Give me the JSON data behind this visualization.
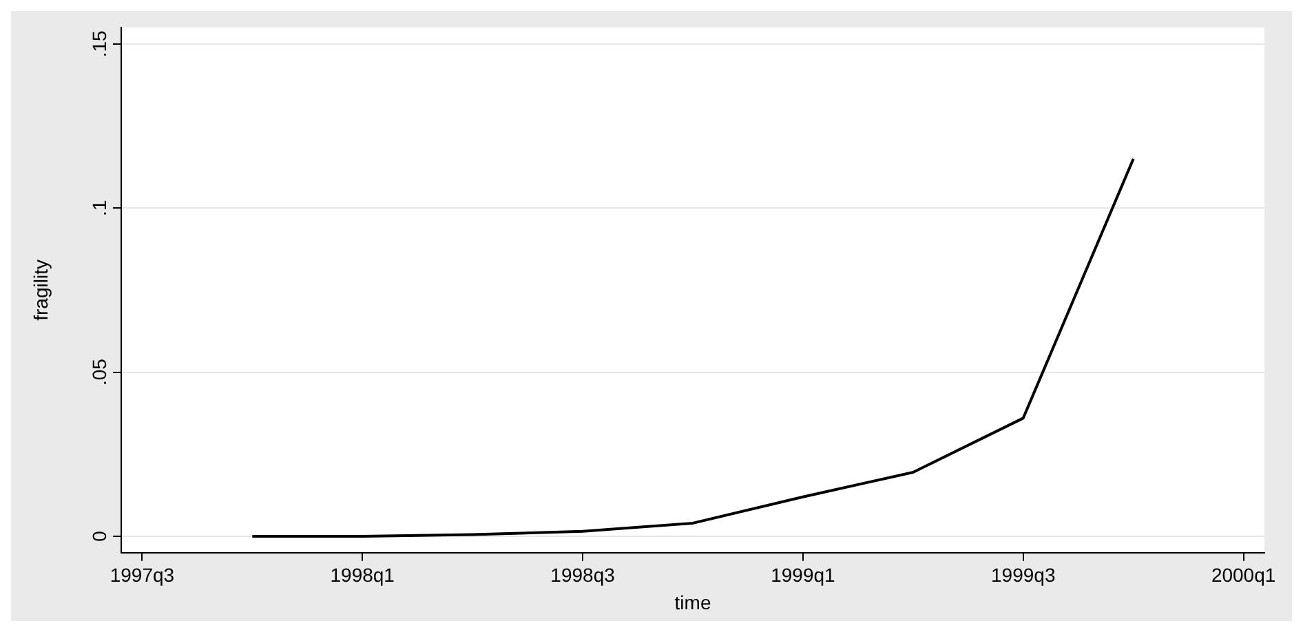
{
  "chart_data": {
    "type": "line",
    "xlabel": "time",
    "ylabel": "fragility",
    "categories": [
      "1997q3",
      null,
      "1998q1",
      null,
      "1998q3",
      null,
      "1999q1",
      null,
      "1999q3",
      null,
      "2000q1"
    ],
    "series": [
      {
        "color": "#000000",
        "values": [
          null,
          0,
          0,
          0.0005,
          0.0015,
          0.004,
          0.012,
          0.0195,
          0.036,
          0.115,
          null
        ]
      }
    ],
    "ylim": [
      -0.005,
      0.155
    ],
    "yticks": [
      0,
      {
        "value": 0.05,
        "label": ".05"
      },
      {
        "value": 0.1,
        "label": ".1"
      },
      {
        "value": 0.15,
        "label": ".15"
      }
    ],
    "grid": "y",
    "legend": false,
    "marker": "none",
    "line_style": "solid"
  }
}
